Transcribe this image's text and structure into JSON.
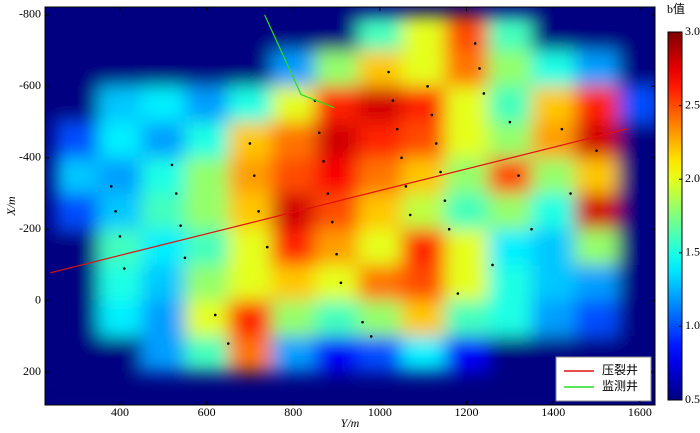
{
  "chart_data": {
    "type": "heatmap",
    "xlabel": "Y/m",
    "ylabel": "X/m",
    "xlim": [
      227,
      1635
    ],
    "ylim": [
      292,
      -822
    ],
    "xticks": [
      400,
      600,
      800,
      1000,
      1200,
      1400,
      1600
    ],
    "yticks": [
      -800,
      -600,
      -400,
      -200,
      0,
      200
    ],
    "x": [
      300,
      400,
      500,
      600,
      700,
      800,
      900,
      1000,
      1100,
      1200,
      1300,
      1400,
      1500,
      1600
    ],
    "y": [
      -750,
      -650,
      -550,
      -450,
      -350,
      -250,
      -150,
      -50,
      50,
      150
    ],
    "z": [
      [
        0.5,
        0.5,
        0.5,
        0.5,
        0.5,
        0.5,
        0.5,
        1.6,
        2.0,
        2.5,
        1.6,
        0.5,
        0.5,
        0.5
      ],
      [
        0.5,
        0.5,
        0.5,
        0.5,
        0.5,
        1.2,
        1.8,
        2.2,
        2.0,
        2.4,
        1.8,
        1.5,
        1.2,
        0.5
      ],
      [
        0.5,
        1.3,
        1.4,
        1.2,
        1.5,
        2.0,
        2.6,
        2.8,
        2.6,
        2.0,
        1.6,
        2.2,
        2.6,
        1.0
      ],
      [
        1.0,
        1.4,
        1.2,
        1.5,
        2.2,
        2.4,
        2.8,
        2.6,
        2.5,
        2.0,
        1.8,
        2.3,
        2.8,
        0.5
      ],
      [
        1.3,
        1.2,
        1.5,
        1.8,
        2.3,
        2.5,
        2.7,
        2.4,
        2.2,
        1.8,
        2.5,
        1.8,
        2.2,
        0.5
      ],
      [
        1.0,
        1.3,
        1.6,
        1.8,
        2.2,
        2.8,
        2.5,
        2.2,
        1.9,
        1.6,
        1.8,
        1.5,
        2.8,
        0.5
      ],
      [
        0.5,
        1.6,
        1.4,
        1.6,
        2.0,
        2.6,
        2.3,
        2.0,
        2.6,
        2.0,
        1.4,
        1.3,
        1.8,
        0.5
      ],
      [
        0.5,
        1.5,
        1.3,
        1.8,
        2.0,
        2.2,
        2.0,
        2.4,
        2.5,
        2.0,
        1.5,
        1.3,
        1.2,
        0.5
      ],
      [
        0.5,
        1.4,
        1.2,
        2.0,
        2.6,
        1.8,
        1.6,
        1.8,
        2.2,
        1.6,
        1.5,
        1.2,
        1.0,
        0.5
      ],
      [
        0.5,
        0.5,
        1.2,
        1.6,
        2.4,
        1.2,
        0.8,
        1.0,
        1.4,
        0.8,
        0.5,
        0.5,
        0.5,
        0.5
      ]
    ],
    "colormap": "jet",
    "colorbar": {
      "title": "b值",
      "lim": [
        0.5,
        3.0
      ],
      "ticks": [
        0.5,
        {
          "value": 1,
          "label": "1.0"
        },
        1.5,
        {
          "value": 2,
          "label": "2.0"
        },
        2.5,
        {
          "value": 3,
          "label": "3.0"
        }
      ]
    },
    "series": [
      {
        "name": "压裂井",
        "color": "#e01010",
        "x": [
          239,
          1571
        ],
        "y": [
          -78,
          -481
        ]
      },
      {
        "name": "监测井",
        "color": "#20e020",
        "x": [
          734,
          818,
          895
        ],
        "y": [
          -800,
          -577,
          -540
        ]
      }
    ],
    "events": {
      "color": "#000000",
      "x": [
        380,
        390,
        400,
        410,
        520,
        530,
        540,
        550,
        700,
        710,
        720,
        740,
        850,
        860,
        870,
        880,
        890,
        900,
        910,
        1020,
        1030,
        1040,
        1050,
        1060,
        1070,
        1110,
        1120,
        1130,
        1140,
        1150,
        1160,
        1220,
        1230,
        1240,
        1300,
        1320,
        1350,
        1420,
        1440,
        1500,
        620,
        650,
        960,
        980,
        1180,
        1260
      ],
      "y": [
        -320,
        -250,
        -180,
        -90,
        -380,
        -300,
        -210,
        -120,
        -440,
        -350,
        -250,
        -150,
        -560,
        -470,
        -390,
        -300,
        -220,
        -130,
        -50,
        -640,
        -560,
        -480,
        -400,
        -320,
        -240,
        -600,
        -520,
        -440,
        -360,
        -280,
        -200,
        -720,
        -650,
        -580,
        -500,
        -350,
        -200,
        -480,
        -300,
        -420,
        40,
        120,
        60,
        100,
        -20,
        -100
      ]
    },
    "legend": "lower right"
  }
}
